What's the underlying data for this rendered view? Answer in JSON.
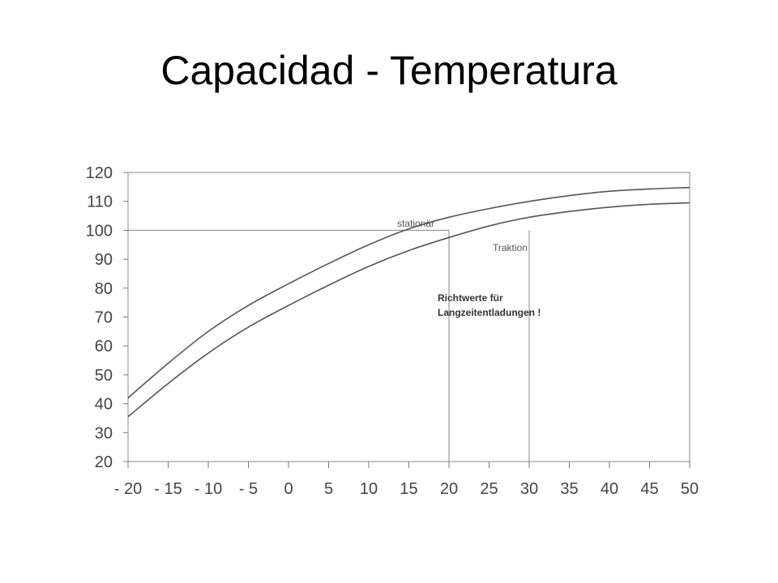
{
  "slide": {
    "title": "Capacidad - Temperatura"
  },
  "chart_data": {
    "type": "line",
    "title": "Capacidad - Temperatura",
    "xlabel": "",
    "ylabel": "",
    "xlim": [
      -20,
      50
    ],
    "ylim": [
      20,
      120
    ],
    "x_ticks": [
      -20,
      -15,
      -10,
      -5,
      0,
      5,
      10,
      15,
      20,
      25,
      30,
      35,
      40,
      45,
      50
    ],
    "x_tick_labels": [
      "- 20",
      "- 15",
      "- 10",
      "- 5",
      "0",
      "5",
      "10",
      "15",
      "20",
      "25",
      "30",
      "35",
      "40",
      "45",
      "50"
    ],
    "y_ticks": [
      20,
      30,
      40,
      50,
      60,
      70,
      80,
      90,
      100,
      110,
      120
    ],
    "y_tick_labels": [
      "20",
      "30",
      "40",
      "50",
      "60",
      "70",
      "80",
      "90",
      "100",
      "110",
      "120"
    ],
    "grid": false,
    "series": [
      {
        "name": "stationär",
        "color": "#555555",
        "x": [
          -20,
          -15,
          -10,
          -5,
          0,
          5,
          10,
          15,
          20,
          25,
          30,
          35,
          40,
          45,
          50
        ],
        "y": [
          42,
          54,
          65,
          74,
          81.5,
          88.5,
          95,
          100.5,
          104.5,
          107.5,
          110,
          112,
          113.5,
          114.3,
          114.8
        ]
      },
      {
        "name": "Traktion",
        "color": "#555555",
        "x": [
          -20,
          -15,
          -10,
          -5,
          0,
          5,
          10,
          15,
          20,
          25,
          30,
          35,
          40,
          45,
          50
        ],
        "y": [
          35.5,
          47,
          57.5,
          66.5,
          74,
          81,
          87.5,
          93,
          97.5,
          101.5,
          104.5,
          106.5,
          108,
          109,
          109.5
        ]
      }
    ],
    "reference_lines": [
      {
        "orientation": "horizontal",
        "y": 100,
        "x_from": -20,
        "x_to": 20
      },
      {
        "orientation": "vertical",
        "x": 20,
        "y_from": 20,
        "y_to": 100
      },
      {
        "orientation": "vertical",
        "x": 30,
        "y_from": 20,
        "y_to": 100
      }
    ],
    "annotations": {
      "line1": "Richtwerte für",
      "line2": "Langzeitentladungen !"
    }
  }
}
